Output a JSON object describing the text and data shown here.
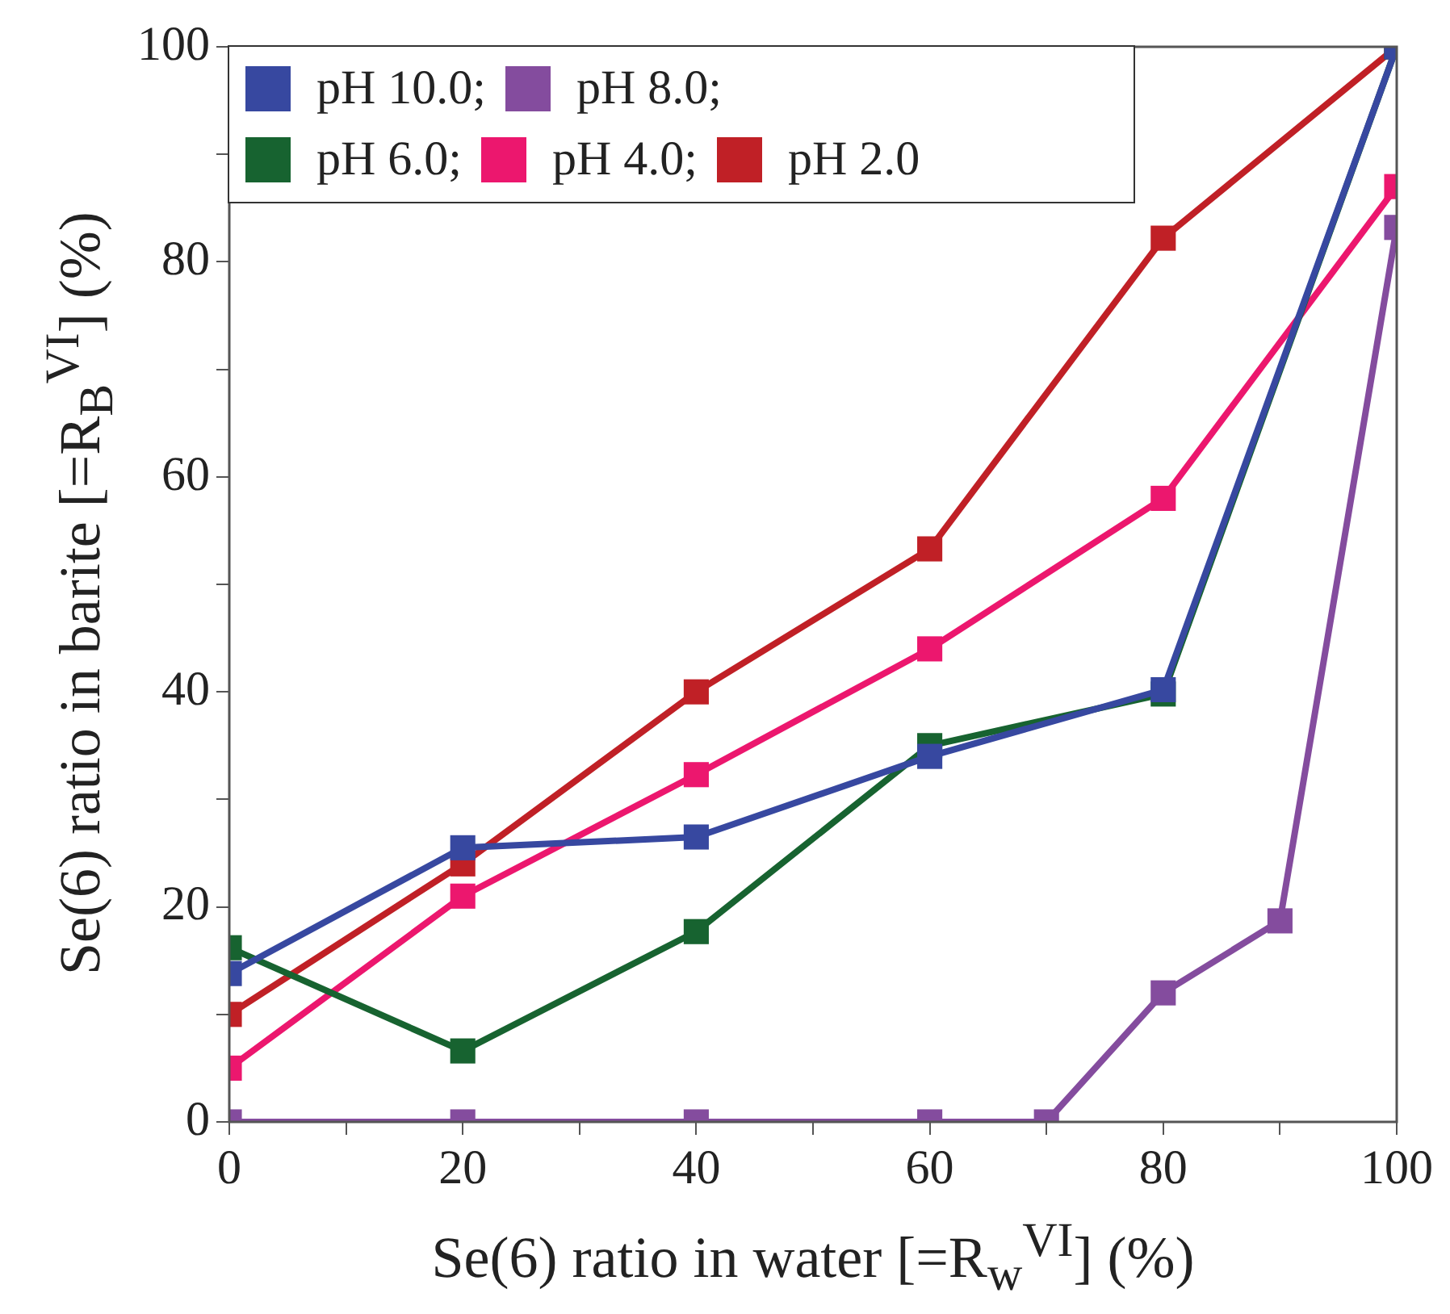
{
  "chart_data": {
    "type": "line",
    "xlabel": "Se(6) ratio in water [=R$_{w}$$^{VI}$] (%)",
    "ylabel": "Se(6) ratio in barite [=R$_{B}$$^{VI}$] (%)",
    "xlim": [
      0,
      100
    ],
    "ylim": [
      0,
      100
    ],
    "xticks": [
      0,
      {
        "value": 10,
        "label": null
      },
      20,
      {
        "value": 30,
        "label": null
      },
      40,
      {
        "value": 50,
        "label": null
      },
      60,
      {
        "value": 70,
        "label": null
      },
      80,
      {
        "value": 90,
        "label": null
      },
      100
    ],
    "yticks": [
      0,
      {
        "value": 10,
        "label": null
      },
      20,
      {
        "value": 30,
        "label": null
      },
      40,
      {
        "value": 50,
        "label": null
      },
      60,
      {
        "value": 70,
        "label": null
      },
      80,
      {
        "value": 90,
        "label": null
      },
      100
    ],
    "grid": false,
    "legend": "top left",
    "marker": "square",
    "line_style": "solid",
    "series": [
      {
        "name": "pH 10.0;",
        "color": "#3748a0",
        "x": [
          0,
          20,
          40,
          60,
          80,
          100
        ],
        "values": [
          13.8,
          25.5,
          26.5,
          34,
          40.2,
          100
        ]
      },
      {
        "name": "pH 8.0;",
        "color": "#844c9e",
        "x": [
          0,
          20,
          40,
          60,
          70,
          80,
          90,
          100
        ],
        "values": [
          0,
          0,
          0,
          0,
          0,
          12,
          18.7,
          83.2
        ]
      },
      {
        "name": "pH 6.0;",
        "color": "#176330",
        "x": [
          0,
          20,
          40,
          60,
          80,
          100
        ],
        "values": [
          16.2,
          6.6,
          17.7,
          35,
          39.8,
          100
        ]
      },
      {
        "name": "pH 4.0;",
        "color": "#ec176e",
        "x": [
          0,
          20,
          40,
          60,
          80,
          100
        ],
        "values": [
          5,
          21,
          32.3,
          44,
          58,
          87
        ]
      },
      {
        "name": "pH 2.0",
        "color": "#c02026",
        "x": [
          0,
          20,
          40,
          60,
          80,
          100
        ],
        "values": [
          10,
          24,
          40,
          53.3,
          82.2,
          100
        ]
      }
    ]
  }
}
